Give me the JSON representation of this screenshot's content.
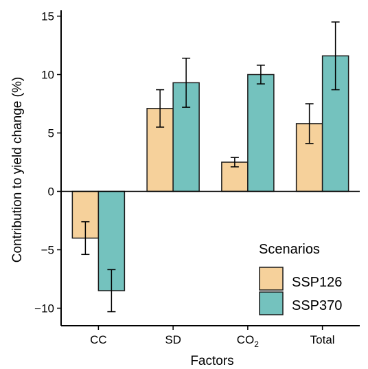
{
  "chart_data": {
    "type": "bar",
    "categories": [
      "CC",
      "SD",
      "CO2",
      "Total"
    ],
    "category_labels": [
      {
        "base": "CC",
        "sub": ""
      },
      {
        "base": "SD",
        "sub": ""
      },
      {
        "base": "CO",
        "sub": "2"
      },
      {
        "base": "Total",
        "sub": ""
      }
    ],
    "series": [
      {
        "name": "SSP126",
        "color": "#f6d19b",
        "values": [
          -4.0,
          7.1,
          2.5,
          5.8
        ],
        "err_low": [
          -5.4,
          5.5,
          2.1,
          4.1
        ],
        "err_high": [
          -2.6,
          8.7,
          2.9,
          7.5
        ]
      },
      {
        "name": "SSP370",
        "color": "#74c2be",
        "values": [
          -8.5,
          9.3,
          10.0,
          11.6
        ],
        "err_low": [
          -10.3,
          7.2,
          9.2,
          8.7
        ],
        "err_high": [
          -6.7,
          11.4,
          10.8,
          14.5
        ]
      }
    ],
    "xlabel": "Factors",
    "ylabel": "Contribution to yield change (%)",
    "ylim": [
      -11.5,
      15.5
    ],
    "yticks": [
      15,
      10,
      5,
      0,
      -5,
      -10
    ],
    "ytick_labels": [
      "15",
      "10",
      "5",
      "0",
      "−5",
      "−10"
    ],
    "legend": {
      "title": "Scenarios",
      "position": "bottom-right"
    },
    "grid": false
  }
}
